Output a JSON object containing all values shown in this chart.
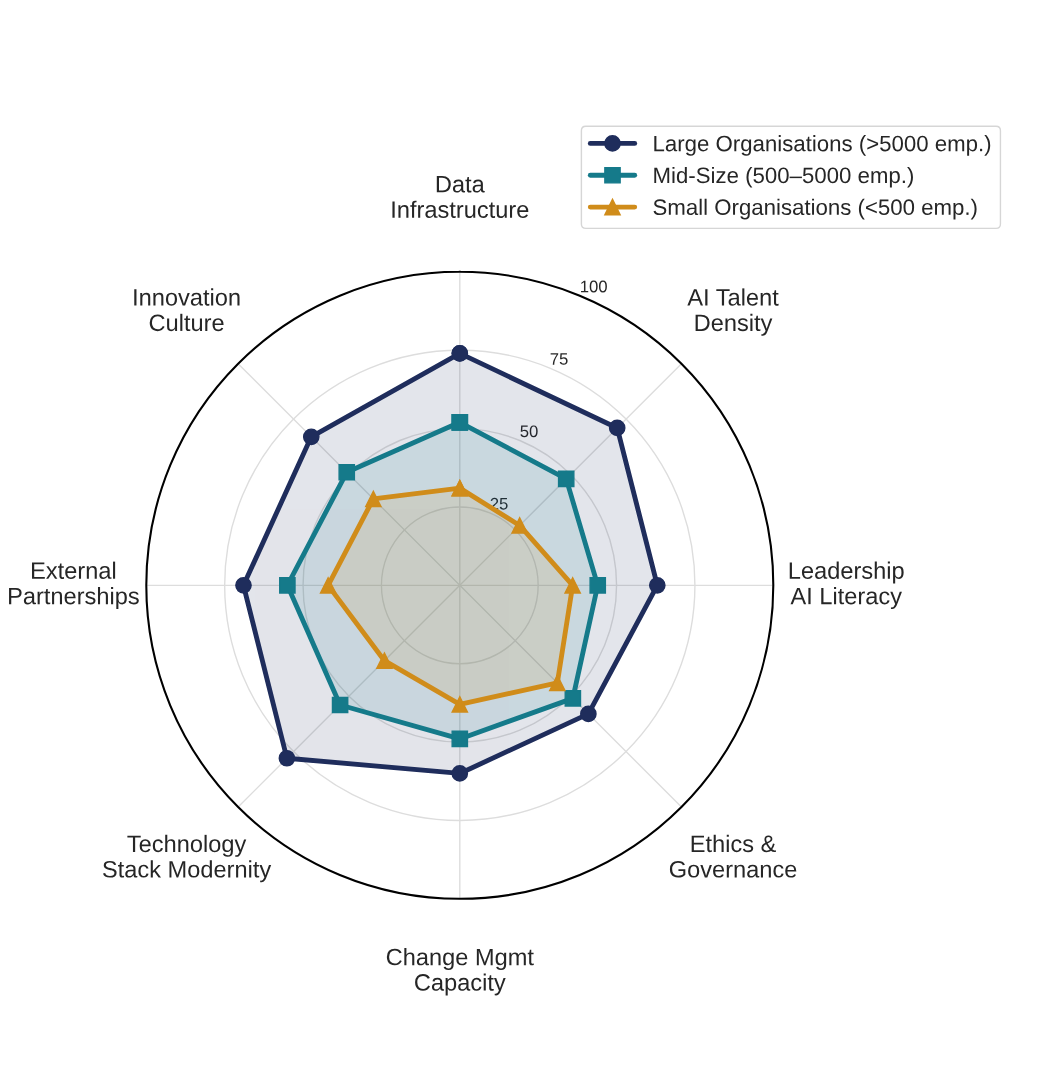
{
  "chart_data": {
    "type": "radar",
    "categories": [
      "Data\nInfrastructure",
      "AI Talent\nDensity",
      "Leadership\nAI Literacy",
      "Ethics &\nGovernance",
      "Change Mgmt\nCapacity",
      "Technology\nStack Modernity",
      "External\nPartnerships",
      "Innovation\nCulture"
    ],
    "series": [
      {
        "name": "Large Organisations (>5000 emp.)",
        "color": "#1f2d5c",
        "marker": "circle",
        "values": [
          74,
          71,
          63,
          58,
          60,
          78,
          69,
          67
        ]
      },
      {
        "name": "Mid-Size (500–5000 emp.)",
        "color": "#157a8a",
        "marker": "square",
        "values": [
          52,
          48,
          44,
          51,
          49,
          54,
          55,
          51
        ]
      },
      {
        "name": "Small Organisations (<500 emp.)",
        "color": "#d08c1a",
        "marker": "triangle",
        "values": [
          31,
          27,
          36,
          44,
          38,
          34,
          42,
          39
        ]
      }
    ],
    "ylim": [
      0,
      100
    ],
    "yticks": [
      25,
      50,
      75,
      100
    ],
    "grid": true,
    "legend": "top right",
    "line_style": "solid"
  }
}
